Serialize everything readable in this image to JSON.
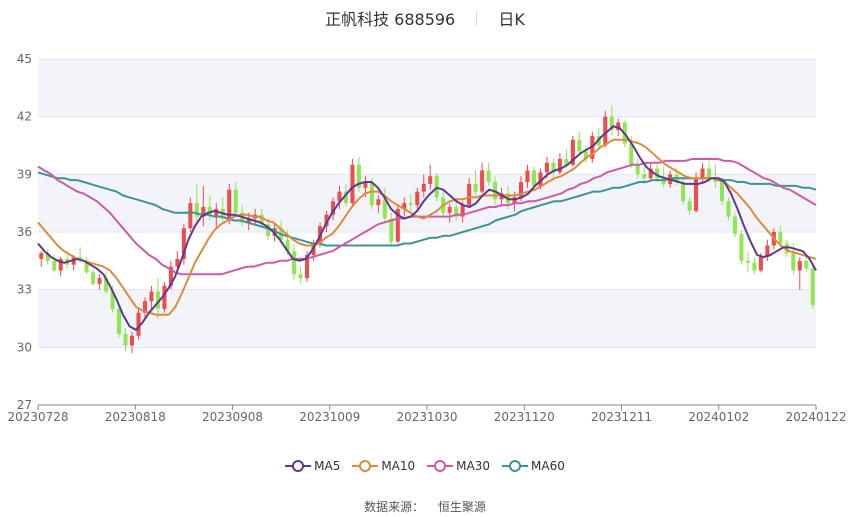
{
  "header": {
    "title": "正帆科技 688596",
    "period": "日K"
  },
  "source": {
    "label": "数据来源：",
    "name": "恒生聚源"
  },
  "chart_data": {
    "type": "candlestick",
    "yticks": [
      27,
      30,
      33,
      36,
      39,
      42,
      45
    ],
    "ylim": [
      27,
      45
    ],
    "xticks": [
      "20230728",
      "20230818",
      "20230908",
      "20231009",
      "20231030",
      "20231120",
      "20231211",
      "20240102",
      "20240122"
    ],
    "colors": {
      "up": "#f04a4a",
      "down": "#8ee650",
      "ma5": "#5b3a8e",
      "ma10": "#e08a3c",
      "ma30": "#d05aa8",
      "ma60": "#3d9494"
    },
    "legend": [
      {
        "key": "ma5",
        "label": "MA5"
      },
      {
        "key": "ma10",
        "label": "MA10"
      },
      {
        "key": "ma30",
        "label": "MA30"
      },
      {
        "key": "ma60",
        "label": "MA60"
      }
    ],
    "candles": [
      [
        34.6,
        35.0,
        34.2,
        34.9
      ],
      [
        34.9,
        35.1,
        34.3,
        34.5
      ],
      [
        34.5,
        34.8,
        33.9,
        34.0
      ],
      [
        34.0,
        34.7,
        33.7,
        34.6
      ],
      [
        34.6,
        34.9,
        34.1,
        34.3
      ],
      [
        34.3,
        34.8,
        34.0,
        34.7
      ],
      [
        34.7,
        35.2,
        34.4,
        34.5
      ],
      [
        34.5,
        34.7,
        33.8,
        33.9
      ],
      [
        33.9,
        34.1,
        33.2,
        33.3
      ],
      [
        33.3,
        33.8,
        33.0,
        33.6
      ],
      [
        33.6,
        33.9,
        32.8,
        32.9
      ],
      [
        32.9,
        33.2,
        31.8,
        32.0
      ],
      [
        32.0,
        32.2,
        30.5,
        30.7
      ],
      [
        30.7,
        31.0,
        29.8,
        30.1
      ],
      [
        30.1,
        30.8,
        29.7,
        30.6
      ],
      [
        30.6,
        32.0,
        30.4,
        31.8
      ],
      [
        31.8,
        32.6,
        31.5,
        32.4
      ],
      [
        32.4,
        33.2,
        32.0,
        32.9
      ],
      [
        32.9,
        33.6,
        31.5,
        32.0
      ],
      [
        32.0,
        33.4,
        31.8,
        33.2
      ],
      [
        33.2,
        34.5,
        33.0,
        34.2
      ],
      [
        34.2,
        35.0,
        33.8,
        34.6
      ],
      [
        34.6,
        36.4,
        34.3,
        36.2
      ],
      [
        36.2,
        37.8,
        36.0,
        37.5
      ],
      [
        37.5,
        38.5,
        36.5,
        36.8
      ],
      [
        36.8,
        38.4,
        36.3,
        37.3
      ],
      [
        37.3,
        37.9,
        36.6,
        36.8
      ],
      [
        36.8,
        37.5,
        36.2,
        37.2
      ],
      [
        37.2,
        37.8,
        36.5,
        36.7
      ],
      [
        36.7,
        38.5,
        36.4,
        38.2
      ],
      [
        38.2,
        38.6,
        36.8,
        37.0
      ],
      [
        37.0,
        37.4,
        36.3,
        36.5
      ],
      [
        36.5,
        37.0,
        36.1,
        36.7
      ],
      [
        36.7,
        37.2,
        36.4,
        36.9
      ],
      [
        36.9,
        37.2,
        36.2,
        36.4
      ],
      [
        36.4,
        36.7,
        35.6,
        35.8
      ],
      [
        35.8,
        36.4,
        35.5,
        36.2
      ],
      [
        36.2,
        36.6,
        35.4,
        35.6
      ],
      [
        35.6,
        36.1,
        34.8,
        35.0
      ],
      [
        35.0,
        35.4,
        33.5,
        33.8
      ],
      [
        33.8,
        34.2,
        33.3,
        33.6
      ],
      [
        33.6,
        35.0,
        33.4,
        34.8
      ],
      [
        34.8,
        35.6,
        34.5,
        35.4
      ],
      [
        35.4,
        36.5,
        35.2,
        36.3
      ],
      [
        36.3,
        37.1,
        36.0,
        36.9
      ],
      [
        36.9,
        37.8,
        36.6,
        37.6
      ],
      [
        37.6,
        38.4,
        37.2,
        38.1
      ],
      [
        38.1,
        38.5,
        37.3,
        37.5
      ],
      [
        37.5,
        39.8,
        37.4,
        39.5
      ],
      [
        39.5,
        39.9,
        38.1,
        38.3
      ],
      [
        38.3,
        38.9,
        37.8,
        38.6
      ],
      [
        38.6,
        38.8,
        37.2,
        37.4
      ],
      [
        37.4,
        37.9,
        37.0,
        37.7
      ],
      [
        37.7,
        38.3,
        36.5,
        36.7
      ],
      [
        36.7,
        37.0,
        35.3,
        35.5
      ],
      [
        35.5,
        37.4,
        35.4,
        37.2
      ],
      [
        37.2,
        37.8,
        36.8,
        37.5
      ],
      [
        37.5,
        38.0,
        37.0,
        37.4
      ],
      [
        37.4,
        38.3,
        37.2,
        38.1
      ],
      [
        38.1,
        39.0,
        37.8,
        38.5
      ],
      [
        38.5,
        39.5,
        38.2,
        38.9
      ],
      [
        38.9,
        39.1,
        37.6,
        37.8
      ],
      [
        37.8,
        38.2,
        36.8,
        37.0
      ],
      [
        37.0,
        37.5,
        36.5,
        37.3
      ],
      [
        37.3,
        37.8,
        36.6,
        36.8
      ],
      [
        36.8,
        37.6,
        36.5,
        37.4
      ],
      [
        37.4,
        38.8,
        37.3,
        38.5
      ],
      [
        38.5,
        39.2,
        37.9,
        38.1
      ],
      [
        38.1,
        39.6,
        38.0,
        39.2
      ],
      [
        39.2,
        39.6,
        38.4,
        38.6
      ],
      [
        38.6,
        38.9,
        37.4,
        37.7
      ],
      [
        37.7,
        38.3,
        37.4,
        38.0
      ],
      [
        38.0,
        38.4,
        37.2,
        37.5
      ],
      [
        37.5,
        38.1,
        37.1,
        37.8
      ],
      [
        37.8,
        38.9,
        37.6,
        38.6
      ],
      [
        38.6,
        39.5,
        38.3,
        39.2
      ],
      [
        39.2,
        39.4,
        38.2,
        38.4
      ],
      [
        38.4,
        39.3,
        38.2,
        39.1
      ],
      [
        39.1,
        39.9,
        38.8,
        39.6
      ],
      [
        39.6,
        39.8,
        38.8,
        39.1
      ],
      [
        39.1,
        40.1,
        39.0,
        39.8
      ],
      [
        39.8,
        40.3,
        39.3,
        39.5
      ],
      [
        39.5,
        41.0,
        39.4,
        40.8
      ],
      [
        40.8,
        41.2,
        40.0,
        40.2
      ],
      [
        40.2,
        40.5,
        39.6,
        39.8
      ],
      [
        39.8,
        41.2,
        39.6,
        41.0
      ],
      [
        41.0,
        41.4,
        40.3,
        40.5
      ],
      [
        40.5,
        42.3,
        40.4,
        42.0
      ],
      [
        42.0,
        42.6,
        41.0,
        41.3
      ],
      [
        41.3,
        41.9,
        41.0,
        41.7
      ],
      [
        41.7,
        41.8,
        40.4,
        40.6
      ],
      [
        40.6,
        41.0,
        39.3,
        39.5
      ],
      [
        39.5,
        39.8,
        38.8,
        39.0
      ],
      [
        39.0,
        39.4,
        38.5,
        38.8
      ],
      [
        38.8,
        39.6,
        38.7,
        39.3
      ],
      [
        39.3,
        39.5,
        38.6,
        38.8
      ],
      [
        38.8,
        39.4,
        38.3,
        38.5
      ],
      [
        38.5,
        39.2,
        38.3,
        39.0
      ],
      [
        39.0,
        39.3,
        38.4,
        38.6
      ],
      [
        38.6,
        38.8,
        37.4,
        37.6
      ],
      [
        37.6,
        37.8,
        36.9,
        37.1
      ],
      [
        37.1,
        39.1,
        37.0,
        38.8
      ],
      [
        38.8,
        39.6,
        38.5,
        39.3
      ],
      [
        39.3,
        39.7,
        38.6,
        38.8
      ],
      [
        38.8,
        39.5,
        38.3,
        38.6
      ],
      [
        38.6,
        38.8,
        37.4,
        37.6
      ],
      [
        37.6,
        37.8,
        36.6,
        36.8
      ],
      [
        36.8,
        37.0,
        35.7,
        35.9
      ],
      [
        35.9,
        36.1,
        34.3,
        34.5
      ],
      [
        34.5,
        35.0,
        33.9,
        34.4
      ],
      [
        34.4,
        34.7,
        33.8,
        34.0
      ],
      [
        34.0,
        34.9,
        33.9,
        34.7
      ],
      [
        34.7,
        35.6,
        34.5,
        35.3
      ],
      [
        35.3,
        36.2,
        35.1,
        36.0
      ],
      [
        36.0,
        36.3,
        35.2,
        35.4
      ],
      [
        35.4,
        35.6,
        34.7,
        34.9
      ],
      [
        34.9,
        35.4,
        33.8,
        34.0
      ],
      [
        34.0,
        34.7,
        33.0,
        34.5
      ],
      [
        34.5,
        34.8,
        33.9,
        34.1
      ],
      [
        34.1,
        34.3,
        32.0,
        32.2
      ]
    ],
    "ma5": [
      35.4,
      35.0,
      34.7,
      34.5,
      34.4,
      34.5,
      34.6,
      34.5,
      34.3,
      34.1,
      33.8,
      33.2,
      32.5,
      31.7,
      31.1,
      30.9,
      31.3,
      31.8,
      32.2,
      32.6,
      33.1,
      33.7,
      34.6,
      35.6,
      36.3,
      36.8,
      37.0,
      37.1,
      37.0,
      36.9,
      36.9,
      36.8,
      36.7,
      36.6,
      36.5,
      36.3,
      36.0,
      35.6,
      35.1,
      34.6,
      34.5,
      34.6,
      35.1,
      35.7,
      36.4,
      37.0,
      37.5,
      37.9,
      38.3,
      38.5,
      38.6,
      38.6,
      38.3,
      37.8,
      37.2,
      36.9,
      36.7,
      36.8,
      37.1,
      37.6,
      38.0,
      38.3,
      38.2,
      37.9,
      37.6,
      37.4,
      37.3,
      37.5,
      37.9,
      38.2,
      38.1,
      37.9,
      37.7,
      37.7,
      37.8,
      38.0,
      38.4,
      38.7,
      39.0,
      39.2,
      39.3,
      39.5,
      39.8,
      40.1,
      40.3,
      40.5,
      40.9,
      41.2,
      41.5,
      41.4,
      41.0,
      40.5,
      39.9,
      39.4,
      39.1,
      38.9,
      38.8,
      38.7,
      38.6,
      38.5,
      38.5,
      38.5,
      38.6,
      38.8,
      38.8,
      38.6,
      38.0,
      37.2,
      36.3,
      35.5,
      34.8,
      34.7,
      34.8,
      35.0,
      35.2,
      35.2,
      35.1,
      35.0,
      34.6,
      34.0
    ],
    "ma10": [
      36.5,
      36.1,
      35.7,
      35.3,
      35.0,
      34.8,
      34.6,
      34.5,
      34.4,
      34.3,
      34.2,
      34.0,
      33.6,
      33.1,
      32.6,
      32.1,
      31.9,
      31.8,
      31.7,
      31.7,
      31.7,
      32.1,
      32.8,
      33.6,
      34.4,
      35.0,
      35.6,
      36.1,
      36.4,
      36.6,
      36.8,
      36.9,
      36.9,
      36.8,
      36.8,
      36.6,
      36.5,
      36.2,
      35.9,
      35.6,
      35.4,
      35.3,
      35.3,
      35.4,
      35.7,
      35.9,
      36.3,
      36.8,
      37.3,
      37.7,
      38.0,
      38.1,
      38.1,
      37.9,
      37.6,
      37.4,
      37.2,
      37.0,
      36.8,
      36.7,
      36.9,
      37.1,
      37.4,
      37.6,
      37.7,
      37.7,
      37.8,
      37.8,
      37.9,
      37.9,
      37.9,
      37.9,
      37.9,
      37.9,
      38.0,
      38.1,
      38.2,
      38.4,
      38.6,
      38.8,
      38.9,
      39.1,
      39.3,
      39.6,
      39.9,
      40.1,
      40.4,
      40.6,
      40.8,
      40.8,
      40.8,
      40.7,
      40.6,
      40.4,
      40.1,
      39.8,
      39.5,
      39.3,
      39.1,
      38.9,
      38.8,
      38.8,
      38.8,
      38.8,
      38.7,
      38.6,
      38.3,
      38.0,
      37.6,
      37.2,
      36.7,
      36.3,
      35.9,
      35.5,
      35.2,
      35.0,
      34.9,
      34.8,
      34.7,
      34.6
    ],
    "ma30": [
      39.4,
      39.2,
      39.0,
      38.7,
      38.5,
      38.3,
      38.1,
      38.0,
      37.8,
      37.6,
      37.3,
      37.0,
      36.6,
      36.2,
      35.8,
      35.4,
      35.1,
      34.8,
      34.6,
      34.3,
      34.1,
      33.9,
      33.8,
      33.8,
      33.8,
      33.8,
      33.8,
      33.8,
      33.8,
      33.9,
      34.0,
      34.1,
      34.2,
      34.2,
      34.3,
      34.4,
      34.4,
      34.5,
      34.5,
      34.6,
      34.6,
      34.6,
      34.7,
      34.8,
      34.9,
      35.0,
      35.2,
      35.4,
      35.6,
      35.8,
      36.0,
      36.2,
      36.4,
      36.5,
      36.6,
      36.7,
      36.7,
      36.8,
      36.8,
      36.8,
      36.8,
      36.8,
      36.8,
      36.8,
      36.9,
      36.9,
      37.0,
      37.1,
      37.2,
      37.3,
      37.3,
      37.4,
      37.4,
      37.5,
      37.5,
      37.6,
      37.6,
      37.7,
      37.8,
      37.9,
      38.0,
      38.2,
      38.3,
      38.5,
      38.6,
      38.8,
      38.9,
      39.1,
      39.2,
      39.3,
      39.4,
      39.5,
      39.5,
      39.6,
      39.6,
      39.6,
      39.7,
      39.7,
      39.7,
      39.7,
      39.8,
      39.8,
      39.8,
      39.8,
      39.8,
      39.7,
      39.7,
      39.6,
      39.4,
      39.2,
      39.0,
      38.8,
      38.7,
      38.5,
      38.3,
      38.2,
      38.0,
      37.8,
      37.6,
      37.4
    ],
    "ma60": [
      39.1,
      39.0,
      38.9,
      38.8,
      38.8,
      38.7,
      38.7,
      38.6,
      38.5,
      38.4,
      38.3,
      38.2,
      38.1,
      37.9,
      37.8,
      37.7,
      37.6,
      37.5,
      37.4,
      37.2,
      37.1,
      37.0,
      37.0,
      37.0,
      37.0,
      36.9,
      36.9,
      36.8,
      36.8,
      36.7,
      36.6,
      36.6,
      36.5,
      36.4,
      36.3,
      36.2,
      36.1,
      35.9,
      35.8,
      35.7,
      35.6,
      35.5,
      35.4,
      35.4,
      35.3,
      35.3,
      35.3,
      35.3,
      35.3,
      35.3,
      35.3,
      35.3,
      35.3,
      35.3,
      35.3,
      35.3,
      35.4,
      35.4,
      35.5,
      35.6,
      35.7,
      35.7,
      35.8,
      35.8,
      35.9,
      36.0,
      36.1,
      36.2,
      36.3,
      36.4,
      36.6,
      36.7,
      36.8,
      36.9,
      37.1,
      37.2,
      37.3,
      37.4,
      37.5,
      37.6,
      37.6,
      37.7,
      37.8,
      37.9,
      38.0,
      38.1,
      38.1,
      38.2,
      38.3,
      38.3,
      38.4,
      38.5,
      38.6,
      38.6,
      38.7,
      38.7,
      38.7,
      38.8,
      38.8,
      38.8,
      38.8,
      38.8,
      38.8,
      38.8,
      38.8,
      38.7,
      38.7,
      38.6,
      38.6,
      38.5,
      38.5,
      38.5,
      38.5,
      38.4,
      38.4,
      38.4,
      38.4,
      38.3,
      38.3,
      38.2
    ]
  }
}
